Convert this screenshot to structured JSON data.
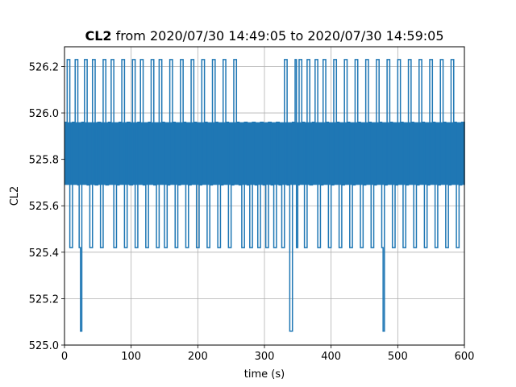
{
  "chart_data": {
    "type": "line",
    "title_variable": "CL2",
    "title_rest": "from 2020/07/30 14:49:05 to 2020/07/30 14:59:05",
    "xlabel": "time (s)",
    "ylabel": "CL2",
    "xlim": [
      0,
      600
    ],
    "ylim": [
      525.0,
      526.285
    ],
    "xticks": [
      0,
      100,
      200,
      300,
      400,
      500,
      600
    ],
    "xtick_labels": [
      "0",
      "100",
      "200",
      "300",
      "400",
      "500",
      "600"
    ],
    "yticks": [
      525.0,
      525.2,
      525.4,
      525.6,
      525.8,
      526.0,
      526.2
    ],
    "ytick_labels": [
      "525.0",
      "525.2",
      "525.4",
      "525.6",
      "525.8",
      "526.0",
      "526.2"
    ],
    "grid": true,
    "series_color": "#1f77b4",
    "quantized_levels": [
      525.06,
      525.42,
      525.69,
      525.96,
      526.23
    ],
    "series": [
      {
        "x": [
          0,
          4,
          8,
          12,
          16,
          20,
          22,
          24,
          26,
          30,
          34,
          38,
          42,
          46,
          50,
          54,
          58,
          62,
          66,
          70,
          74,
          78,
          82,
          86,
          90,
          94,
          98,
          102,
          106,
          110,
          114,
          118,
          122,
          126,
          130,
          134,
          138,
          142,
          146,
          150,
          154,
          158,
          162,
          166,
          170,
          174,
          178,
          182,
          186,
          190,
          194,
          198,
          202,
          206,
          210,
          214,
          218,
          222,
          226,
          230,
          234,
          238,
          242,
          246,
          250,
          254,
          258,
          262,
          266,
          270,
          274,
          278,
          282,
          286,
          290,
          294,
          298,
          302,
          306,
          310,
          314,
          318,
          322,
          326,
          330,
          334,
          338,
          342,
          346,
          348,
          350,
          352,
          356,
          360,
          364,
          368,
          372,
          376,
          380,
          384,
          388,
          392,
          396,
          400,
          404,
          408,
          412,
          416,
          420,
          424,
          428,
          432,
          436,
          440,
          444,
          448,
          452,
          456,
          460,
          464,
          468,
          472,
          476,
          478,
          480,
          484,
          488,
          492,
          496,
          500,
          504,
          508,
          512,
          516,
          520,
          524,
          528,
          532,
          536,
          540,
          544,
          548,
          552,
          556,
          560,
          564,
          568,
          572,
          576,
          580,
          584,
          588,
          592,
          596,
          600
        ],
        "y": [
          525.96,
          526.23,
          525.42,
          525.96,
          526.23,
          525.69,
          525.42,
          525.06,
          525.96,
          526.23,
          525.69,
          525.42,
          526.23,
          525.69,
          525.96,
          525.42,
          526.23,
          525.69,
          525.96,
          526.23,
          525.42,
          525.69,
          525.96,
          526.23,
          525.42,
          525.96,
          525.69,
          526.23,
          525.42,
          525.96,
          526.23,
          525.69,
          525.42,
          525.96,
          526.23,
          525.69,
          525.42,
          526.23,
          525.96,
          525.42,
          525.69,
          526.23,
          525.96,
          525.42,
          525.69,
          526.23,
          525.96,
          525.42,
          525.69,
          526.23,
          525.96,
          525.42,
          525.69,
          526.23,
          525.96,
          525.42,
          525.69,
          526.23,
          525.96,
          525.42,
          525.69,
          526.23,
          525.96,
          525.42,
          525.69,
          526.23,
          525.96,
          525.69,
          525.42,
          525.96,
          525.69,
          525.42,
          525.96,
          525.69,
          525.42,
          525.96,
          525.69,
          525.42,
          525.96,
          525.69,
          525.42,
          525.96,
          525.69,
          525.42,
          526.23,
          525.69,
          525.06,
          525.96,
          526.23,
          525.42,
          525.69,
          526.23,
          525.96,
          525.42,
          526.23,
          525.69,
          525.96,
          526.23,
          525.42,
          525.69,
          526.23,
          525.96,
          525.42,
          525.69,
          526.23,
          525.96,
          525.42,
          525.69,
          526.23,
          525.96,
          525.42,
          525.69,
          526.23,
          525.96,
          525.42,
          525.69,
          526.23,
          525.96,
          525.42,
          525.69,
          526.23,
          525.96,
          525.42,
          525.06,
          525.69,
          526.23,
          525.96,
          525.42,
          525.69,
          526.23,
          525.96,
          525.42,
          525.69,
          526.23,
          525.96,
          525.42,
          525.69,
          526.23,
          525.96,
          525.42,
          525.69,
          526.23,
          525.96,
          525.42,
          525.69,
          526.23,
          525.96,
          525.42,
          525.69,
          526.23,
          525.96,
          525.42,
          525.69,
          525.96,
          525.69
        ]
      }
    ]
  }
}
